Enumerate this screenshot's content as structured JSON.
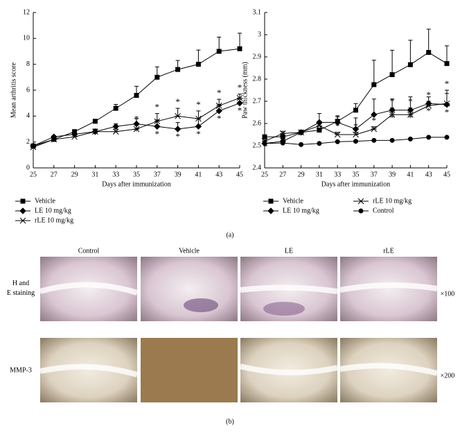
{
  "chart_data": [
    {
      "type": "line",
      "x_label": "Days after immunization",
      "y_label": "Mean arthritis score",
      "x": [
        25,
        27,
        29,
        31,
        33,
        35,
        37,
        39,
        41,
        43,
        45
      ],
      "xlim": [
        25,
        45
      ],
      "xticks": [
        25,
        27,
        29,
        31,
        33,
        35,
        37,
        39,
        41,
        43,
        45
      ],
      "ylim": [
        0,
        12
      ],
      "yticks": [
        0,
        2,
        4,
        6,
        8,
        10,
        12
      ],
      "series": [
        {
          "name": "Vehicle",
          "color": "#000000",
          "marker": "square",
          "values": [
            1.7,
            2.2,
            2.8,
            3.6,
            4.6,
            5.6,
            7.0,
            7.6,
            8.0,
            9.0,
            9.2
          ],
          "errors": [
            0.1,
            0.1,
            0.1,
            0.15,
            0.3,
            0.7,
            0.8,
            0.7,
            1.1,
            1.1,
            1.2
          ]
        },
        {
          "name": "LE 10 mg/kg",
          "color": "#000000",
          "marker": "diamond",
          "values": [
            1.7,
            2.4,
            2.6,
            2.8,
            3.2,
            3.4,
            3.2,
            3.0,
            3.2,
            4.4,
            5.0
          ],
          "errors": [
            0.1,
            0.1,
            0.1,
            0.2,
            0.2,
            0.4,
            0.5,
            0.5,
            0.6,
            0.5,
            0.3
          ],
          "significance": [
            null,
            null,
            null,
            null,
            null,
            "*",
            "*",
            "*",
            "*",
            "*",
            "*"
          ]
        },
        {
          "name": "rLE 10 mg/kg",
          "color": "#000000",
          "marker": "star",
          "values": [
            1.6,
            2.2,
            2.4,
            2.8,
            2.8,
            3.0,
            3.6,
            4.0,
            3.8,
            4.8,
            5.4
          ],
          "errors": [
            0.1,
            0.1,
            0.1,
            0.15,
            0.2,
            0.3,
            0.6,
            0.6,
            0.6,
            0.5,
            0.3
          ],
          "significance": [
            null,
            null,
            null,
            null,
            null,
            "*",
            "*",
            "*",
            "*",
            "*",
            "*"
          ]
        }
      ]
    },
    {
      "type": "line",
      "x_label": "Days after immunization",
      "y_label": "Paw thickness (mm)",
      "x": [
        25,
        27,
        29,
        31,
        33,
        35,
        37,
        39,
        41,
        43,
        45
      ],
      "xlim": [
        25,
        45
      ],
      "xticks": [
        25,
        27,
        29,
        31,
        33,
        35,
        37,
        39,
        41,
        43,
        45
      ],
      "ylim": [
        2.4,
        3.1
      ],
      "yticks": [
        2.4,
        2.5,
        2.6,
        2.7,
        2.8,
        2.9,
        3,
        3.1
      ],
      "series": [
        {
          "name": "Vehicle",
          "color": "#000000",
          "marker": "square",
          "values": [
            2.54,
            2.54,
            2.56,
            2.57,
            2.61,
            2.66,
            2.775,
            2.82,
            2.865,
            2.92,
            2.87
          ],
          "errors": [
            0.005,
            0.01,
            0.01,
            0.01,
            0.02,
            0.03,
            0.11,
            0.11,
            0.11,
            0.105,
            0.08
          ]
        },
        {
          "name": "LE 10 mg/kg",
          "color": "#000000",
          "marker": "diamond",
          "values": [
            2.51,
            2.52,
            2.56,
            2.605,
            2.605,
            2.575,
            2.64,
            2.66,
            2.66,
            2.69,
            2.685
          ],
          "errors": [
            0.005,
            0.01,
            0.01,
            0.04,
            0.03,
            0.05,
            0.07,
            0.05,
            0.06,
            0.03,
            0.05
          ],
          "significance": [
            null,
            null,
            null,
            null,
            null,
            null,
            null,
            "*",
            "*",
            "*",
            "*"
          ]
        },
        {
          "name": "rLE 10 mg/kg",
          "color": "#000000",
          "marker": "star",
          "values": [
            2.52,
            2.555,
            2.56,
            2.59,
            2.55,
            2.55,
            2.575,
            2.64,
            2.64,
            2.68,
            2.69
          ],
          "errors": [
            0.005,
            0.01,
            0.01,
            0.02,
            0.01,
            0.01,
            0.01,
            0.03,
            0.03,
            0.02,
            0.06
          ],
          "significance": [
            null,
            null,
            null,
            null,
            "*",
            "*",
            "*",
            "*",
            "*",
            "*",
            "*"
          ]
        },
        {
          "name": "Control",
          "color": "#000000",
          "marker": "circle",
          "values": [
            2.51,
            2.512,
            2.505,
            2.51,
            2.518,
            2.52,
            2.524,
            2.524,
            2.53,
            2.538,
            2.538
          ]
        }
      ]
    }
  ],
  "figure": {
    "label_a": "(a)",
    "label_b": "(b)",
    "columns": [
      "Control",
      "Vehicle",
      "LE",
      "rLE"
    ],
    "rows": [
      {
        "label": "H and E staining",
        "magnification": "×100"
      },
      {
        "label": "MMP-3",
        "magnification": "×200"
      }
    ]
  }
}
